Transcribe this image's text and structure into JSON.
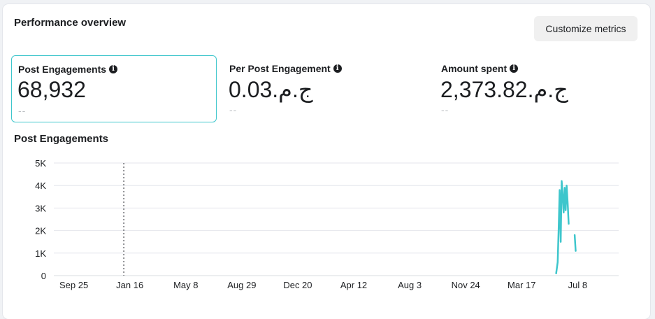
{
  "header": {
    "title": "Performance overview",
    "customize_label": "Customize metrics"
  },
  "metrics": [
    {
      "label": "Post Engagements",
      "value": "68,932",
      "delta": "--",
      "selected": true
    },
    {
      "label": "Per Post Engagement",
      "value": "ج.م.0.03",
      "delta": "--",
      "selected": false
    },
    {
      "label": "Amount spent",
      "value": "ج.م.2,373.82",
      "delta": "--",
      "selected": false
    }
  ],
  "chart_title": "Post Engagements",
  "chart_data": {
    "type": "line",
    "title": "Post Engagements",
    "xlabel": "",
    "ylabel": "",
    "ylim": [
      0,
      5000
    ],
    "y_ticks": [
      {
        "label": "5K",
        "value": 5000
      },
      {
        "label": "4K",
        "value": 4000
      },
      {
        "label": "3K",
        "value": 3000
      },
      {
        "label": "2K",
        "value": 2000
      },
      {
        "label": "1K",
        "value": 1000
      },
      {
        "label": "0",
        "value": 0
      }
    ],
    "x_tick_labels": [
      "Sep 25",
      "Jan 16",
      "May 8",
      "Aug 29",
      "Dec 20",
      "Apr 12",
      "Aug 3",
      "Nov 24",
      "Mar 17",
      "Jul 8"
    ],
    "x_tick_positions": [
      0,
      112,
      224,
      336,
      448,
      560,
      672,
      784,
      896,
      1008
    ],
    "x_range": [
      -40,
      1090
    ],
    "marker_x": 100,
    "grid": true,
    "color": "#3ec6cc",
    "series": [
      {
        "name": "",
        "segments": [
          [
            [
              965,
              100
            ],
            [
              968,
              600
            ],
            [
              970,
              2100
            ],
            [
              972,
              3800
            ],
            [
              974,
              1500
            ],
            [
              976,
              4200
            ],
            [
              978,
              3600
            ],
            [
              980,
              2800
            ],
            [
              982,
              3900
            ],
            [
              984,
              2900
            ],
            [
              986,
              4000
            ],
            [
              988,
              3200
            ],
            [
              990,
              2300
            ]
          ],
          [
            [
              1002,
              1800
            ],
            [
              1004,
              1100
            ]
          ]
        ]
      }
    ]
  }
}
